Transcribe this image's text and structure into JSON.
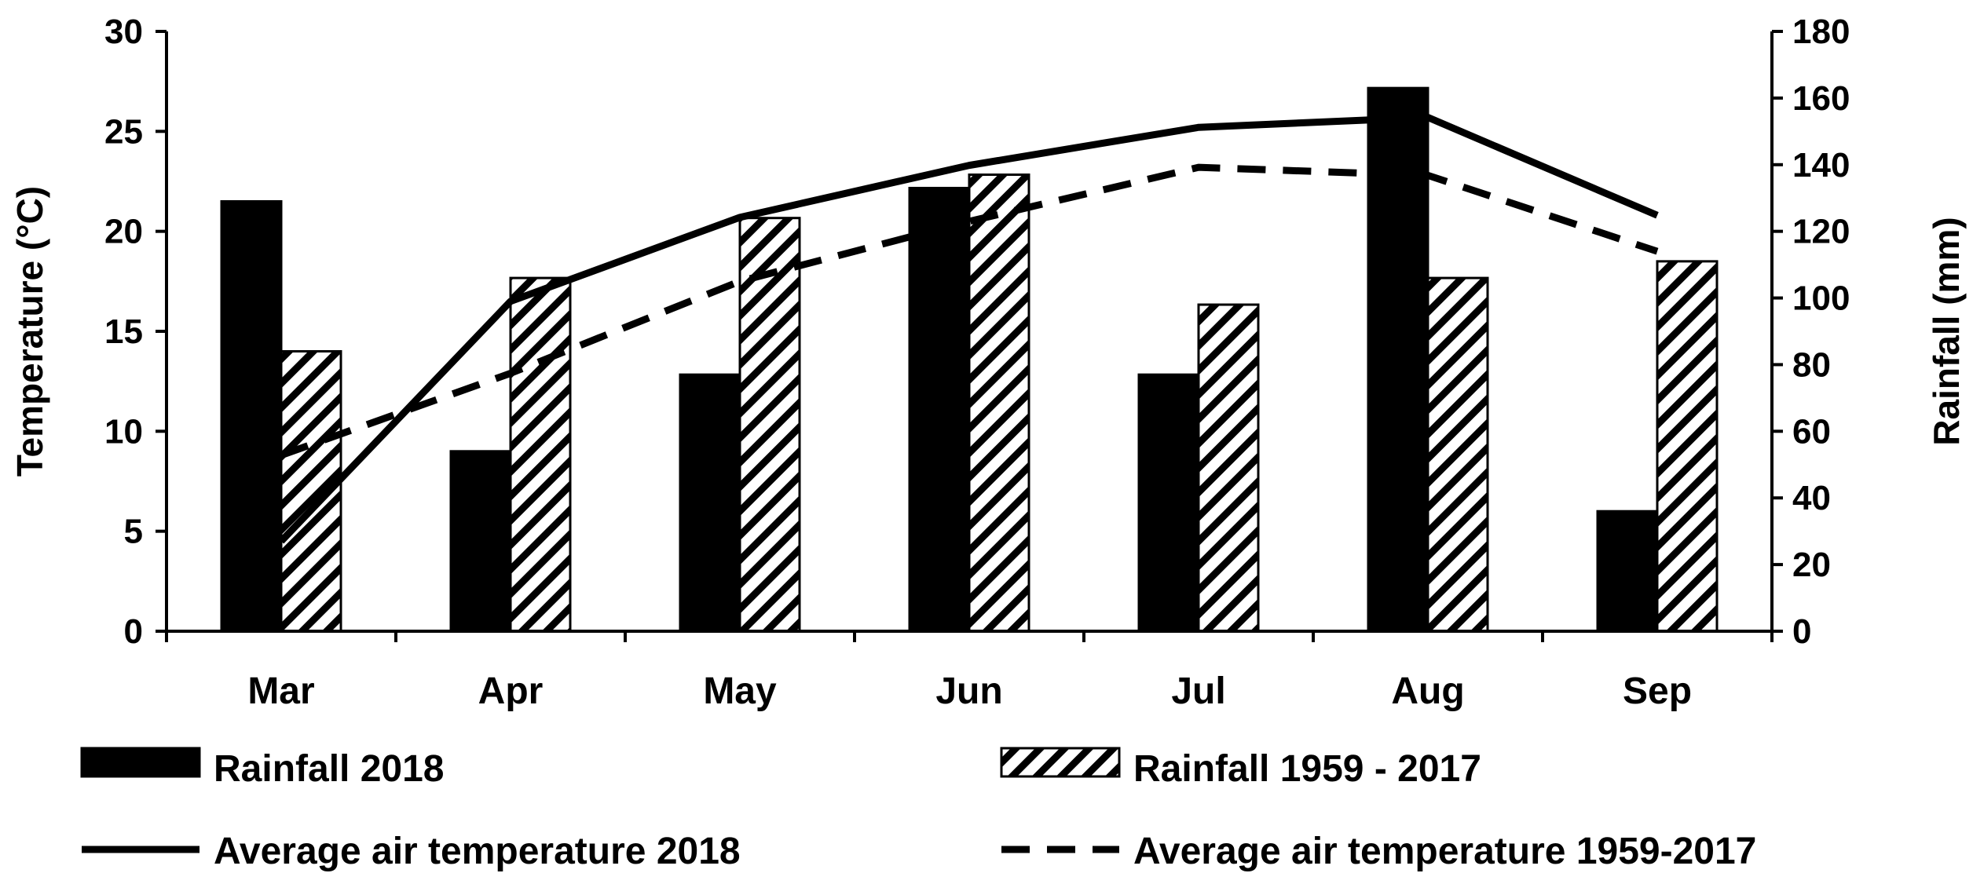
{
  "chart_data": {
    "type": "bar",
    "title": "",
    "categories": [
      "Mar",
      "Apr",
      "May",
      "Jun",
      "Jul",
      "Aug",
      "Sep"
    ],
    "xlabel": "",
    "ylabel_left": "Temperature (°C)",
    "ylabel_right": "Rainfall (mm)",
    "ylim_left": [
      0,
      30
    ],
    "ylim_right": [
      0,
      180
    ],
    "yticks_left": [
      "0",
      "5",
      "10",
      "15",
      "20",
      "25",
      "30"
    ],
    "yticks_right": [
      "0",
      "20",
      "40",
      "60",
      "80",
      "100",
      "120",
      "140",
      "160",
      "180"
    ],
    "grid": false,
    "legend_position": "bottom",
    "bar_series": [
      {
        "name": "Rainfall 2018",
        "axis": "right",
        "style": "solid",
        "color": "#000000",
        "values": [
          129,
          54,
          77,
          133,
          77,
          163,
          36
        ]
      },
      {
        "name": "Rainfall 1959 - 2017",
        "axis": "right",
        "style": "hatched",
        "color": "#000000",
        "values": [
          84,
          106,
          124,
          137,
          98,
          106,
          111
        ]
      }
    ],
    "line_series": [
      {
        "name": "Average air temperature 2018",
        "axis": "left",
        "style": "solid",
        "color": "#000000",
        "values": [
          4.5,
          16.5,
          20.7,
          23.3,
          25.2,
          25.7,
          20.8
        ]
      },
      {
        "name": "Average air temperature 1959-2017",
        "axis": "left",
        "style": "dashed",
        "color": "#000000",
        "values": [
          8.8,
          12.9,
          17.5,
          20.5,
          23.2,
          22.8,
          19.0
        ]
      }
    ]
  }
}
